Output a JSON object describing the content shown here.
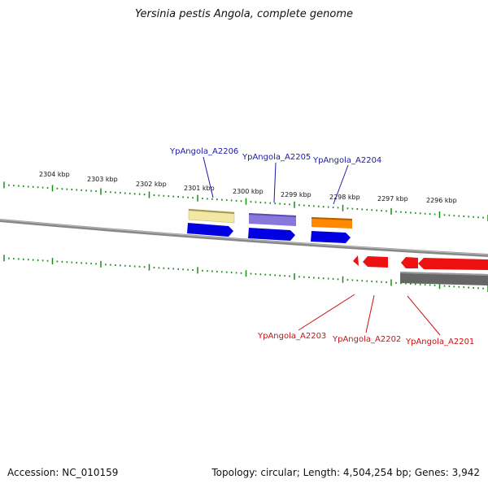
{
  "title": "Yersinia pestis Angola, complete genome",
  "accession": "Accession: NC_010159",
  "summary": "Topology: circular; Length: 4,504,254 bp; Genes: 3,942",
  "scale_labels": [
    "2304 kbp",
    "2303 kbp",
    "2302 kbp",
    "2301 kbp",
    "2300 kbp",
    "2299 kbp",
    "2298 kbp",
    "2297 kbp",
    "2296 kbp"
  ],
  "colors": {
    "tick": "#1a8a1a",
    "backbone": "#808080",
    "blue_gene": "#0000e0",
    "red_gene": "#ee1111",
    "blue_label": "#1a1aaa",
    "red_label": "#cc1111",
    "pale_yellow": "#f2e8a6",
    "lavender": "#8877dd",
    "orange": "#ff8800",
    "dark_gray": "#666666"
  },
  "genes_top": [
    {
      "name": "YpAngola_A2206"
    },
    {
      "name": "YpAngola_A2205"
    },
    {
      "name": "YpAngola_A2204"
    }
  ],
  "genes_bottom": [
    {
      "name": "YpAngola_A2203"
    },
    {
      "name": "YpAngola_A2202"
    },
    {
      "name": "YpAngola_A2201"
    }
  ]
}
